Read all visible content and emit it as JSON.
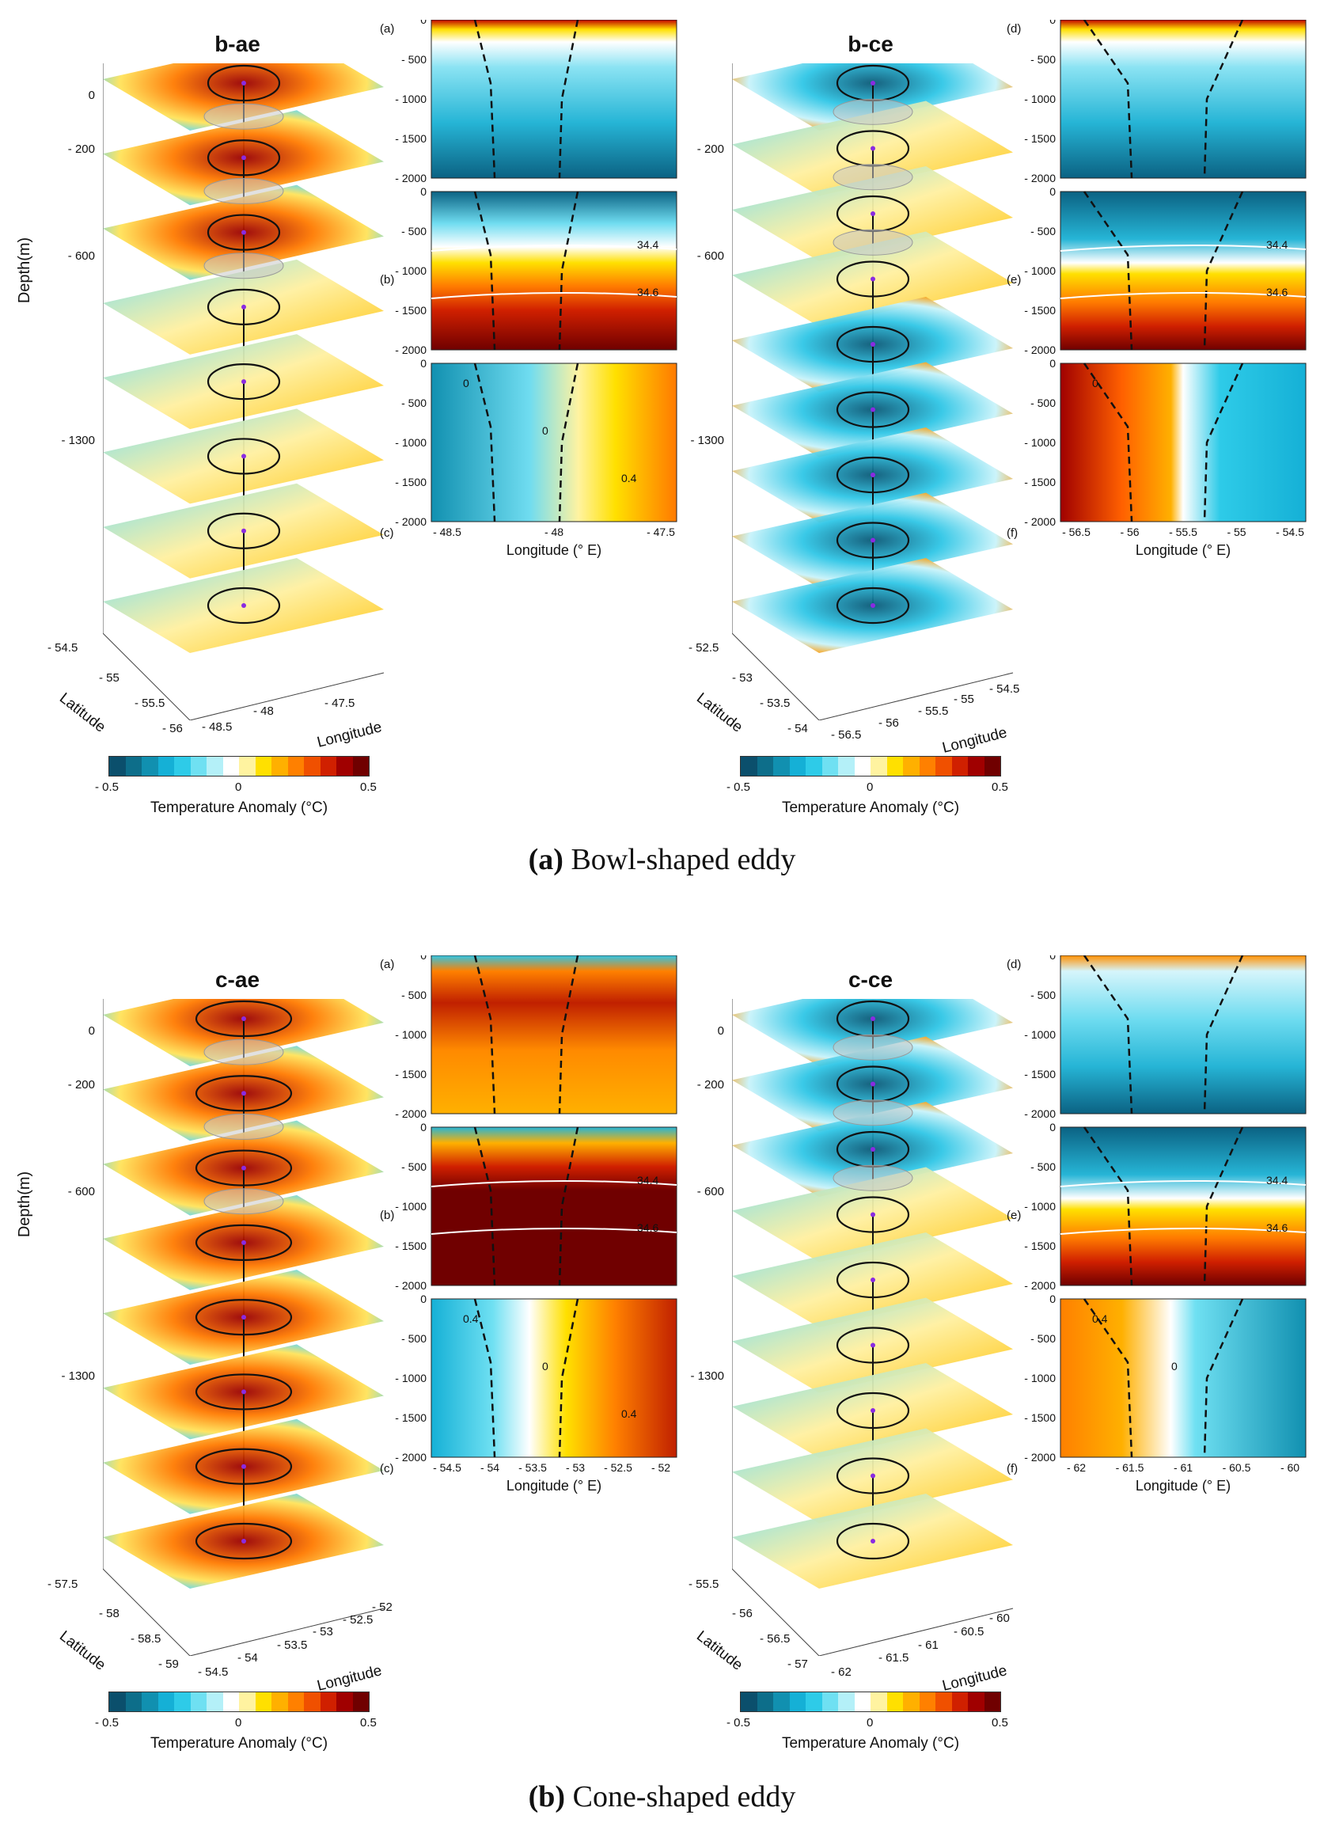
{
  "figure": {
    "colorbar": {
      "min_label": "- 0.5",
      "mid_label": "0",
      "max_label": "0.5",
      "title": "Temperature Anomaly (°C)",
      "colors": [
        "#0b4f6c",
        "#0d6e8a",
        "#1190b0",
        "#15b0d6",
        "#2ecbe8",
        "#6fe0f2",
        "#b4f0f8",
        "#ffffff",
        "#fff3a0",
        "#ffe000",
        "#ffb000",
        "#ff8000",
        "#f05000",
        "#d02000",
        "#a00000",
        "#700000"
      ]
    },
    "sections": [
      {
        "id": "a",
        "caption_letter": "(a)",
        "caption_text": " Bowl-shaped eddy",
        "left_stack": {
          "title": "b-ae",
          "depth_ticks": [
            "0",
            "- 200",
            "- 600",
            "- 1300"
          ],
          "ylabel": "Depth(m)",
          "lat_ticks": [
            "- 54.5",
            "- 55",
            "- 55.5",
            "- 56"
          ],
          "lon_ticks": [
            "- 48.5",
            "- 48",
            "- 47.5"
          ],
          "lat_label": "Latitude",
          "lon_label": "Longitude"
        },
        "right_stack": {
          "title": "b-ce",
          "depth_ticks": [
            "0",
            "- 200",
            "- 600",
            "- 1300"
          ],
          "lat_ticks": [
            "- 52.5",
            "- 53",
            "- 53.5",
            "- 54"
          ],
          "lon_ticks": [
            "- 56.5",
            "- 56",
            "- 55.5",
            "- 55",
            "- 54.5"
          ],
          "lat_label": "Latitude",
          "lon_label": "Longitude"
        },
        "left_panels": {
          "labels": [
            "(a)",
            "(b)",
            "(c)"
          ],
          "y_ticks": [
            "0",
            "- 500",
            "- 1000",
            "- 1500",
            "- 2000"
          ],
          "x_ticks": [
            "- 48.5",
            "- 48",
            "- 47.5"
          ],
          "xlabel": "Longitude (° E)",
          "contours_b": [
            "34.4",
            "34.6"
          ],
          "contours_c": [
            "0",
            "0",
            "0.4"
          ]
        },
        "right_panels": {
          "labels": [
            "(d)",
            "(e)",
            "(f)"
          ],
          "y_ticks": [
            "0",
            "- 500",
            "- 1000",
            "- 1500",
            "- 2000"
          ],
          "x_ticks": [
            "- 56.5",
            "- 56",
            "- 55.5",
            "- 55",
            "- 54.5"
          ],
          "xlabel": "Longitude (° E)",
          "contours_e": [
            "34.4",
            "34.6"
          ],
          "contours_f": [
            "0"
          ]
        }
      },
      {
        "id": "b",
        "caption_letter": "(b)",
        "caption_text": " Cone-shaped eddy",
        "left_stack": {
          "title": "c-ae",
          "depth_ticks": [
            "0",
            "- 200",
            "- 600",
            "- 1300"
          ],
          "ylabel": "Depth(m)",
          "lat_ticks": [
            "- 57.5",
            "- 58",
            "- 58.5",
            "- 59"
          ],
          "lon_ticks": [
            "- 54.5",
            "- 54",
            "- 53.5",
            "- 53",
            "- 52.5",
            "- 52"
          ],
          "lat_label": "Latitude",
          "lon_label": "Longitude"
        },
        "right_stack": {
          "title": "c-ce",
          "depth_ticks": [
            "0",
            "- 200",
            "- 600",
            "- 1300"
          ],
          "lat_ticks": [
            "- 55.5",
            "- 56",
            "- 56.5",
            "- 57"
          ],
          "lon_ticks": [
            "- 62",
            "- 61.5",
            "- 61",
            "- 60.5",
            "- 60"
          ],
          "lat_label": "Latitude",
          "lon_label": "Longitude"
        },
        "left_panels": {
          "labels": [
            "(a)",
            "(b)",
            "(c)"
          ],
          "y_ticks": [
            "0",
            "- 500",
            "- 1000",
            "- 1500",
            "- 2000"
          ],
          "x_ticks": [
            "- 54.5",
            "- 54",
            "- 53.5",
            "- 53",
            "- 52.5",
            "- 52"
          ],
          "xlabel": "Longitude (° E)",
          "contours_b": [
            "34.4",
            "34.6"
          ],
          "contours_c": [
            "0.4",
            "0",
            "0.4"
          ]
        },
        "right_panels": {
          "labels": [
            "(d)",
            "(e)",
            "(f)"
          ],
          "y_ticks": [
            "0",
            "- 500",
            "- 1000",
            "- 1500",
            "- 2000"
          ],
          "x_ticks": [
            "- 62",
            "- 61.5",
            "- 61",
            "- 60.5",
            "- 60"
          ],
          "xlabel": "Longitude (° E)",
          "contours_e": [
            "34.4",
            "34.6"
          ],
          "contours_f": [
            "0.4",
            "0"
          ]
        }
      }
    ]
  }
}
